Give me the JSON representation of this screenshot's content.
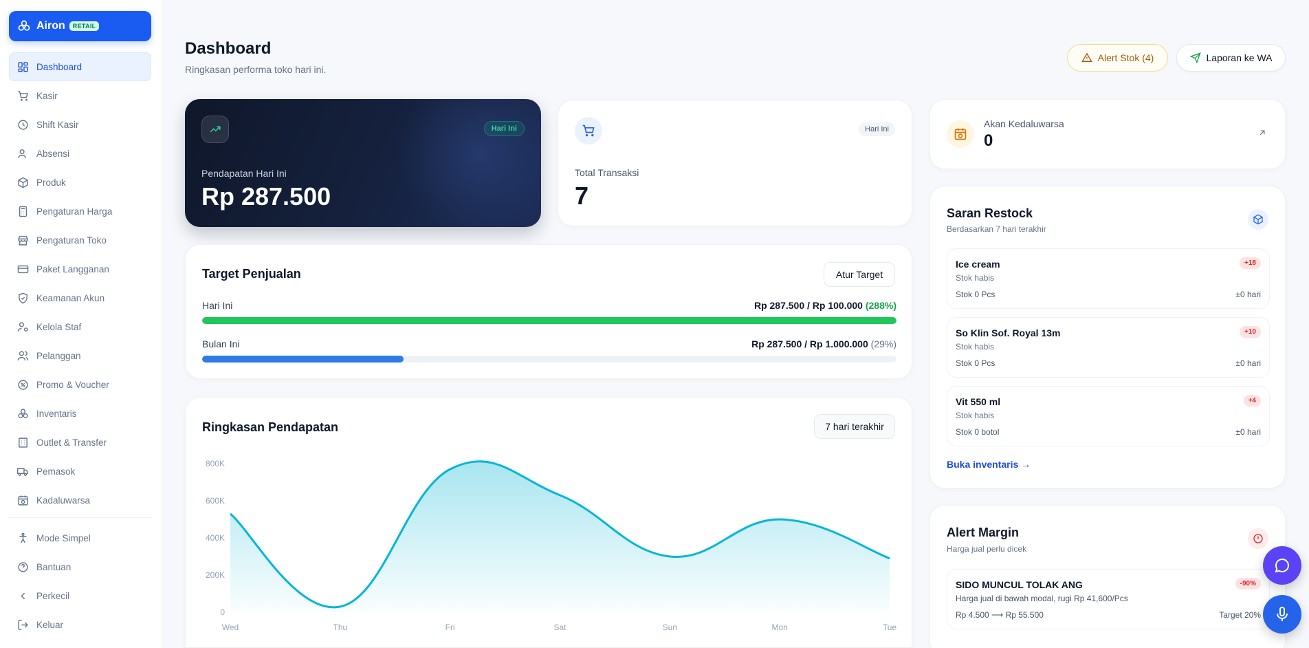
{
  "brand": {
    "name": "Airon",
    "badge": "RETAIL"
  },
  "sidebar": {
    "items": [
      {
        "label": "Dashboard",
        "icon": "dashboard-grid-icon",
        "active": true
      },
      {
        "label": "Kasir",
        "icon": "cart-icon"
      },
      {
        "label": "Shift Kasir",
        "icon": "clock-icon"
      },
      {
        "label": "Absensi",
        "icon": "user-check-icon"
      },
      {
        "label": "Produk",
        "icon": "box-icon"
      },
      {
        "label": "Pengaturan Harga",
        "icon": "calculator-icon"
      },
      {
        "label": "Pengaturan Toko",
        "icon": "store-icon"
      },
      {
        "label": "Paket Langganan",
        "icon": "credit-card-icon"
      },
      {
        "label": "Keamanan Akun",
        "icon": "shield-icon"
      },
      {
        "label": "Kelola Staf",
        "icon": "user-cog-icon"
      },
      {
        "label": "Pelanggan",
        "icon": "users-icon"
      },
      {
        "label": "Promo & Voucher",
        "icon": "percent-badge-icon"
      },
      {
        "label": "Inventaris",
        "icon": "boxes-icon"
      },
      {
        "label": "Outlet & Transfer",
        "icon": "building-icon"
      },
      {
        "label": "Pemasok",
        "icon": "truck-icon"
      },
      {
        "label": "Kadaluwarsa",
        "icon": "calendar-clock-icon"
      }
    ],
    "footer_items": [
      {
        "label": "Mode Simpel",
        "icon": "accessibility-icon"
      },
      {
        "label": "Bantuan",
        "icon": "help-circle-icon"
      },
      {
        "label": "Perkecil",
        "icon": "chevron-left-icon"
      },
      {
        "label": "Keluar",
        "icon": "logout-icon"
      }
    ]
  },
  "header": {
    "title": "Dashboard",
    "subtitle": "Ringkasan performa toko hari ini.",
    "alert_button": "Alert Stok (4)",
    "report_button": "Laporan ke WA"
  },
  "revenue_card": {
    "badge": "Hari Ini",
    "label": "Pendapatan Hari Ini",
    "value": "Rp 287.500"
  },
  "transactions_card": {
    "badge": "Hari Ini",
    "label": "Total Transaksi",
    "value": "7"
  },
  "sales_target": {
    "title": "Target Penjualan",
    "button": "Atur Target",
    "rows": [
      {
        "label": "Hari Ini",
        "amount": "Rp 287.500 / Rp 100.000",
        "percent": "(288%)",
        "fill": 1.0,
        "color": "#22c55e"
      },
      {
        "label": "Bulan Ini",
        "amount": "Rp 287.500 / Rp 1.000.000",
        "percent": "(29%)",
        "fill": 0.29,
        "color": "#2f7be8"
      }
    ]
  },
  "revenue_summary": {
    "title": "Ringkasan Pendapatan",
    "range_button": "7 hari terakhir"
  },
  "chart_data": {
    "type": "area",
    "categories": [
      "Wed",
      "Thu",
      "Fri",
      "Sat",
      "Sun",
      "Mon",
      "Tue"
    ],
    "values": [
      530000,
      30000,
      770000,
      630000,
      300000,
      500000,
      290000
    ],
    "ylim": [
      0,
      800000
    ],
    "yticks": [
      "0",
      "200K",
      "400K",
      "600K",
      "800K"
    ],
    "color": "#06b6d4",
    "grid": false
  },
  "expiring": {
    "label": "Akan Kedaluwarsa",
    "value": "0"
  },
  "restock": {
    "title": "Saran Restock",
    "subtitle": "Berdasarkan 7 hari terakhir",
    "items": [
      {
        "name": "Ice cream",
        "status": "Stok habis",
        "stock": "Stok 0 Pcs",
        "estimate": "±0 hari",
        "qty": "+18"
      },
      {
        "name": "So Klin Sof. Royal 13m",
        "status": "Stok habis",
        "stock": "Stok 0 Pcs",
        "estimate": "±0 hari",
        "qty": "+10"
      },
      {
        "name": "Vit 550 ml",
        "status": "Stok habis",
        "stock": "Stok 0 botol",
        "estimate": "±0 hari",
        "qty": "+4"
      }
    ],
    "link": "Buka inventaris →"
  },
  "margin_alert": {
    "title": "Alert Margin",
    "subtitle": "Harga jual perlu dicek",
    "items": [
      {
        "name": "SIDO MUNCUL TOLAK ANG",
        "desc": "Harga jual di bawah modal, rugi Rp 41,600/Pcs",
        "prices": "Rp 4.500 ⟶ Rp 55.500",
        "target": "Target 20%",
        "badge": "-90%"
      }
    ]
  }
}
